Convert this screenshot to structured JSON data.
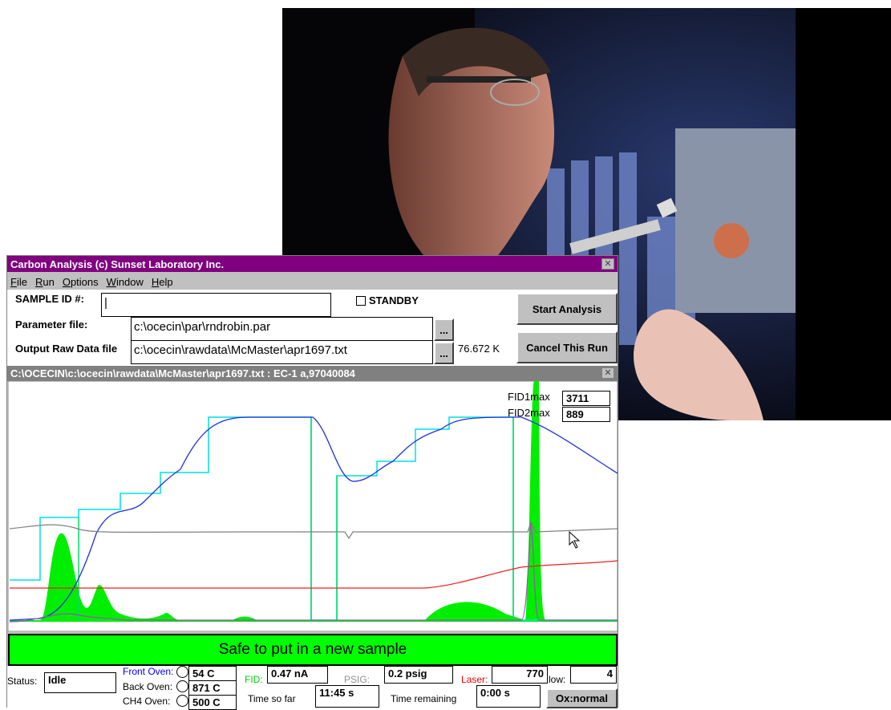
{
  "window": {
    "title": "Carbon Analysis (c) Sunset Laboratory Inc.",
    "menu": [
      "File",
      "Run",
      "Options",
      "Window",
      "Help"
    ]
  },
  "form": {
    "sample_id_label": "SAMPLE  ID #:",
    "standby": "STANDBY",
    "parameter_label": "Parameter file:",
    "parameter_value": "c:\\ocecin\\par\\rndrobin.par",
    "output_label": "Output Raw Data file",
    "output_value": "c:\\ocecin\\rawdata\\McMaster\\apr1697.txt",
    "browse_buttons": [
      "...",
      "..."
    ],
    "file_size": "76.672 K",
    "start_button": "Start Analysis",
    "cancel_button": "Cancel This Run"
  },
  "plot": {
    "title": "C:\\OCECIN\\c:\\ocecin\\rawdata\\McMaster\\apr1697.txt : EC-1 a,97040084",
    "fid1_label": "FID1max",
    "fid1_value": 3711,
    "fid2_label": "FID2max",
    "fid2_value": 889
  },
  "banner": "Safe to put in a new sample",
  "status": {
    "status_label": "Status:",
    "status_value": "Idle",
    "front_oven_label": "Front Oven:",
    "front_oven_value": "54 C",
    "back_oven_label": "Back Oven:",
    "back_oven_value": "871 C",
    "ch4_oven_label": "CH4 Oven:",
    "ch4_oven_value": "500 C",
    "fid_label": "FID:",
    "fid_value": "0.47 nA",
    "psig_label": "PSIG:",
    "psig_value": "0.2 psig",
    "laser_label": "Laser:",
    "laser_value": 770,
    "flow_label": "low:",
    "flow_value": 4,
    "time_so_far_label": "Time so far",
    "time_so_far_value": "11:45 s",
    "time_remaining_label": "Time remaining",
    "time_remaining_value": "0:00 s",
    "ox_button": "Ox:normal"
  }
}
